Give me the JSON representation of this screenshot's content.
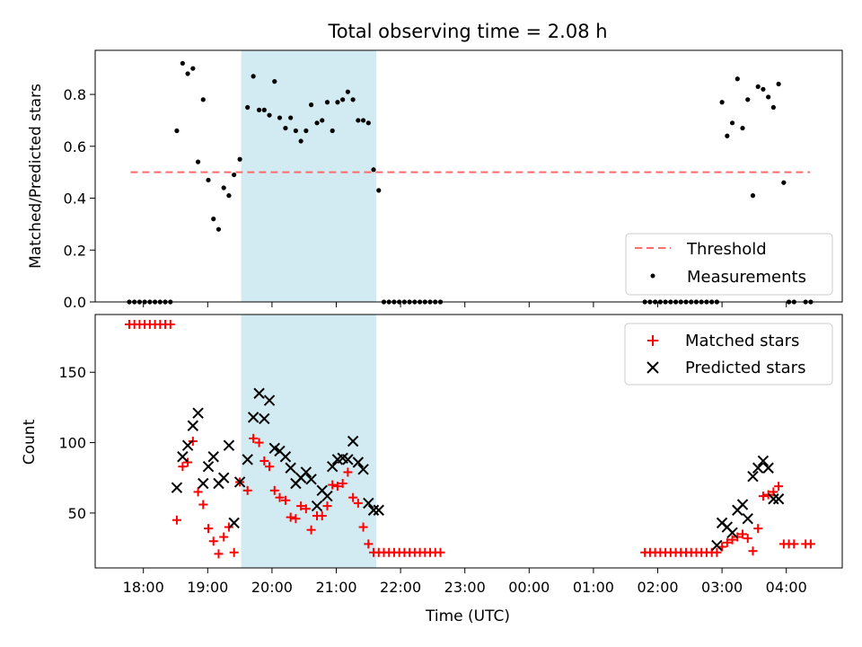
{
  "chart_data": {
    "type": "scatter",
    "title": "Total observing time = 2.08 h",
    "xlabel": "Time (UTC)",
    "x_ticks": [
      "18:00",
      "19:00",
      "20:00",
      "21:00",
      "22:00",
      "23:00",
      "00:00",
      "01:00",
      "02:00",
      "03:00",
      "04:00"
    ],
    "x_tick_hours": [
      0,
      1,
      2,
      3,
      4,
      5,
      6,
      7,
      8,
      9,
      10
    ],
    "xlim_hours": [
      -0.75,
      10.87
    ],
    "shaded_interval_hours": [
      1.52,
      3.62
    ],
    "colors": {
      "shade": "#ADD8E6",
      "threshold": "#FF6B6B",
      "measurements": "#000000",
      "matched": "#FF0000",
      "predicted": "#000000"
    },
    "panels": [
      {
        "id": "top",
        "ylabel": "Matched/Predicted stars",
        "ylim": [
          0,
          0.97
        ],
        "y_ticks": [
          0,
          0.2,
          0.4,
          0.6,
          0.8
        ],
        "y_tick_labels": [
          "0.0",
          "0.2",
          "0.4",
          "0.6",
          "0.8"
        ],
        "legend": {
          "position": "lower-right",
          "entries": [
            "Threshold",
            "Measurements"
          ]
        },
        "series": [
          {
            "name": "Threshold",
            "kind": "dashed-line",
            "x": [
              -0.2,
              10.37
            ],
            "y": [
              0.5,
              0.5
            ]
          },
          {
            "name": "Measurements",
            "kind": "dots",
            "x": [
              -0.22,
              -0.14,
              -0.06,
              0.02,
              0.1,
              0.18,
              0.26,
              0.34,
              0.42,
              0.52,
              0.61,
              0.69,
              0.77,
              0.85,
              0.93,
              1.01,
              1.09,
              1.17,
              1.25,
              1.33,
              1.41,
              1.5,
              1.62,
              1.71,
              1.8,
              1.88,
              1.96,
              2.04,
              2.12,
              2.21,
              2.29,
              2.37,
              2.45,
              2.53,
              2.61,
              2.7,
              2.78,
              2.86,
              2.94,
              3.02,
              3.1,
              3.18,
              3.26,
              3.34,
              3.42,
              3.5,
              3.58,
              3.66,
              3.74,
              3.82,
              3.9,
              3.98,
              4.06,
              4.14,
              4.22,
              4.3,
              4.38,
              4.46,
              4.54,
              4.62,
              7.8,
              7.88,
              7.96,
              8.04,
              8.12,
              8.2,
              8.28,
              8.36,
              8.44,
              8.52,
              8.6,
              8.68,
              8.76,
              8.84,
              8.92,
              9.0,
              9.08,
              9.16,
              9.24,
              9.32,
              9.4,
              9.48,
              9.56,
              9.64,
              9.72,
              9.8,
              9.88,
              9.96,
              10.04,
              10.12,
              10.3,
              10.38
            ],
            "y": [
              0,
              0,
              0,
              0,
              0,
              0,
              0,
              0,
              0,
              0.66,
              0.92,
              0.88,
              0.9,
              0.54,
              0.78,
              0.47,
              0.32,
              0.28,
              0.44,
              0.41,
              0.49,
              0.55,
              0.75,
              0.87,
              0.74,
              0.74,
              0.72,
              0.85,
              0.71,
              0.67,
              0.71,
              0.66,
              0.62,
              0.66,
              0.76,
              0.69,
              0.7,
              0.77,
              0.66,
              0.77,
              0.78,
              0.81,
              0.78,
              0.7,
              0.7,
              0.69,
              0.51,
              0.43,
              0,
              0,
              0,
              0,
              0,
              0,
              0,
              0,
              0,
              0,
              0,
              0,
              0,
              0,
              0,
              0,
              0,
              0,
              0,
              0,
              0,
              0,
              0,
              0,
              0,
              0,
              0,
              0.77,
              0.64,
              0.69,
              0.86,
              0.67,
              0.78,
              0.41,
              0.83,
              0.82,
              0.79,
              0.75,
              0.84,
              0.46,
              0,
              0,
              0,
              0
            ]
          }
        ]
      },
      {
        "id": "bottom",
        "ylabel": "Count",
        "ylim": [
          11,
          191
        ],
        "y_ticks": [
          50,
          100,
          150
        ],
        "y_tick_labels": [
          "50",
          "100",
          "150"
        ],
        "legend": {
          "position": "upper-right",
          "entries": [
            "Matched stars",
            "Predicted stars"
          ]
        },
        "series": [
          {
            "name": "Matched stars",
            "kind": "plus",
            "x": [
              -0.22,
              -0.14,
              -0.06,
              0.02,
              0.1,
              0.18,
              0.26,
              0.34,
              0.42,
              0.52,
              0.61,
              0.69,
              0.77,
              0.85,
              0.93,
              1.01,
              1.09,
              1.17,
              1.25,
              1.33,
              1.41,
              1.5,
              1.62,
              1.71,
              1.8,
              1.88,
              1.96,
              2.04,
              2.12,
              2.21,
              2.29,
              2.37,
              2.45,
              2.53,
              2.61,
              2.7,
              2.78,
              2.86,
              2.94,
              3.02,
              3.1,
              3.18,
              3.26,
              3.34,
              3.42,
              3.5,
              3.58,
              3.66,
              3.74,
              3.82,
              3.9,
              3.98,
              4.06,
              4.14,
              4.22,
              4.3,
              4.38,
              4.46,
              4.54,
              4.62,
              7.8,
              7.88,
              7.96,
              8.04,
              8.12,
              8.2,
              8.28,
              8.36,
              8.44,
              8.52,
              8.6,
              8.68,
              8.76,
              8.84,
              8.92,
              9.0,
              9.08,
              9.16,
              9.24,
              9.32,
              9.4,
              9.48,
              9.56,
              9.64,
              9.72,
              9.8,
              9.88,
              9.96,
              10.04,
              10.12,
              10.3,
              10.38
            ],
            "y": [
              184,
              184,
              184,
              184,
              184,
              184,
              184,
              184,
              184,
              45,
              83,
              86,
              101,
              65,
              56,
              39,
              30,
              21,
              33,
              40,
              22,
              72,
              66,
              103,
              100,
              87,
              83,
              66,
              61,
              59,
              47,
              46,
              55,
              53,
              38,
              48,
              48,
              55,
              70,
              69,
              71,
              79,
              61,
              57,
              40,
              28,
              22,
              22,
              22,
              22,
              22,
              22,
              22,
              22,
              22,
              22,
              22,
              22,
              22,
              22,
              22,
              22,
              22,
              22,
              22,
              22,
              22,
              22,
              22,
              22,
              22,
              22,
              22,
              22,
              22,
              26,
              29,
              31,
              33,
              35,
              32,
              23,
              39,
              62,
              63,
              65,
              69,
              28,
              28,
              28,
              28,
              28
            ]
          },
          {
            "name": "Predicted stars",
            "kind": "cross",
            "x": [
              0.52,
              0.61,
              0.69,
              0.77,
              0.85,
              0.93,
              1.01,
              1.09,
              1.17,
              1.25,
              1.33,
              1.41,
              1.5,
              1.62,
              1.71,
              1.8,
              1.88,
              1.96,
              2.04,
              2.12,
              2.21,
              2.29,
              2.37,
              2.45,
              2.53,
              2.61,
              2.7,
              2.78,
              2.86,
              2.94,
              3.02,
              3.1,
              3.18,
              3.26,
              3.34,
              3.42,
              3.5,
              3.58,
              3.66,
              8.92,
              9.0,
              9.08,
              9.16,
              9.24,
              9.32,
              9.4,
              9.48,
              9.56,
              9.64,
              9.72,
              9.8,
              9.88
            ],
            "y": [
              68,
              90,
              98,
              112,
              121,
              71,
              83,
              90,
              71,
              75,
              98,
              43,
              72,
              88,
              118,
              135,
              117,
              130,
              96,
              94,
              90,
              82,
              71,
              75,
              79,
              74,
              55,
              66,
              62,
              83,
              88,
              89,
              88,
              101,
              86,
              81,
              57,
              52,
              52,
              27,
              43,
              40,
              36,
              52,
              56,
              46,
              76,
              82,
              87,
              82,
              60,
              60
            ]
          }
        ]
      }
    ]
  }
}
